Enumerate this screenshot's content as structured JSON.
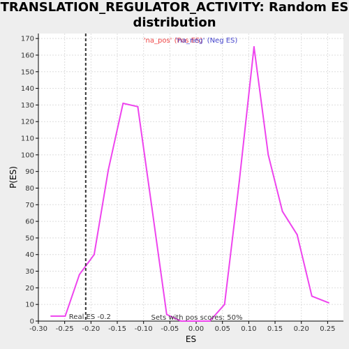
{
  "chart_data": {
    "type": "line",
    "title": [
      "TRANSLATION_REGULATOR_ACTIVITY: Random ES",
      "distribution"
    ],
    "xlabel": "ES",
    "ylabel": "P(ES)",
    "xlim": [
      -0.3,
      0.28
    ],
    "ylim": [
      0,
      173
    ],
    "xticks": [
      -0.3,
      -0.25,
      -0.2,
      -0.15,
      -0.1,
      -0.05,
      0.0,
      0.05,
      0.1,
      0.15,
      0.2,
      0.25
    ],
    "xtick_labels": [
      "-0.30",
      "-0.25",
      "-0.20",
      "-0.15",
      "-0.10",
      "-0.05",
      "0.00",
      "0.05",
      "0.10",
      "0.15",
      "0.20",
      "0.25"
    ],
    "yticks": [
      0,
      10,
      20,
      30,
      40,
      50,
      60,
      70,
      80,
      90,
      100,
      110,
      120,
      130,
      140,
      150,
      160,
      170
    ],
    "grid": true,
    "series": [
      {
        "color": "#ee44ee",
        "x": [
          -0.276,
          -0.249,
          -0.222,
          -0.194,
          -0.167,
          -0.139,
          -0.111,
          -0.084,
          -0.056,
          -0.029,
          -0.001,
          0.026,
          0.054,
          0.082,
          0.11,
          0.137,
          0.164,
          0.192,
          0.22,
          0.252
        ],
        "y": [
          3,
          3,
          28,
          40,
          91,
          131,
          129,
          68,
          4,
          0,
          0,
          0,
          10,
          84,
          165,
          100,
          66,
          52,
          15,
          11
        ]
      }
    ],
    "vline": {
      "x": -0.21,
      "label": "Real ES -0.2",
      "color": "#333333",
      "style": "dashed"
    },
    "legend": [
      {
        "label": "'na_pos' (Pos ES)",
        "color": "#ee4444"
      },
      {
        "label": "'na_neg' (Neg ES)",
        "color": "#4444cc"
      }
    ],
    "annotation": "Sets with pos scores: 50%",
    "colors": {
      "background": "#eeeeee",
      "plot_bg": "#ffffff",
      "grid": "#dddddd",
      "line": "#ee44ee"
    }
  }
}
